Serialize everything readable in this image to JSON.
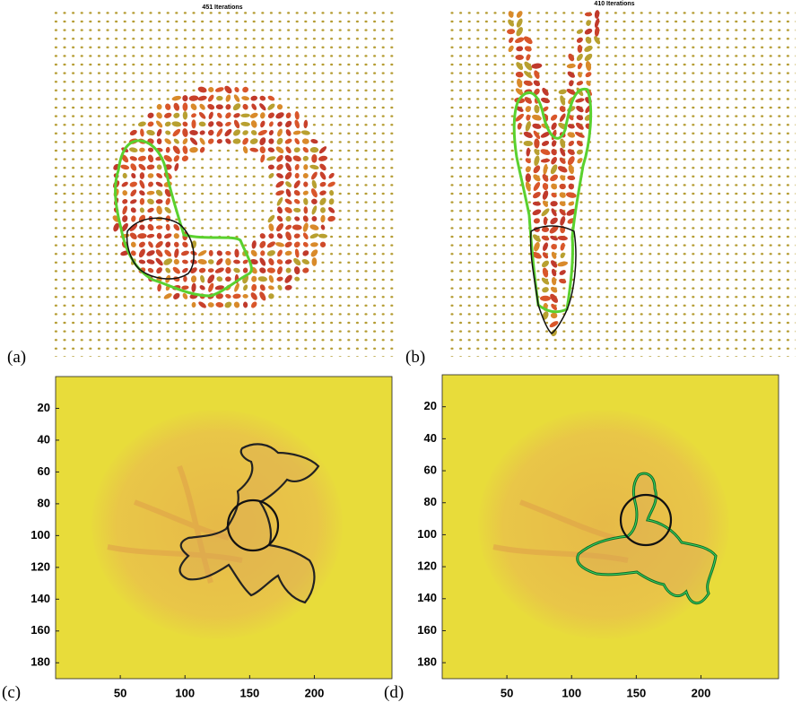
{
  "panels": [
    {
      "label": "(a)",
      "title": "451 Iterations"
    },
    {
      "label": "(b)",
      "title": "410 Iterations"
    },
    {
      "label": "(c)",
      "xlim": [
        0,
        260
      ],
      "ylim": [
        0,
        190
      ],
      "xticks": [
        50,
        100,
        150,
        200
      ],
      "yticks": [
        20,
        40,
        60,
        80,
        100,
        120,
        140,
        160,
        180
      ]
    },
    {
      "label": "(d)",
      "xlim": [
        0,
        260
      ],
      "ylim": [
        0,
        190
      ],
      "xticks": [
        50,
        100,
        150,
        200
      ],
      "yticks": [
        20,
        40,
        60,
        80,
        100,
        120,
        140,
        160,
        180
      ]
    }
  ]
}
